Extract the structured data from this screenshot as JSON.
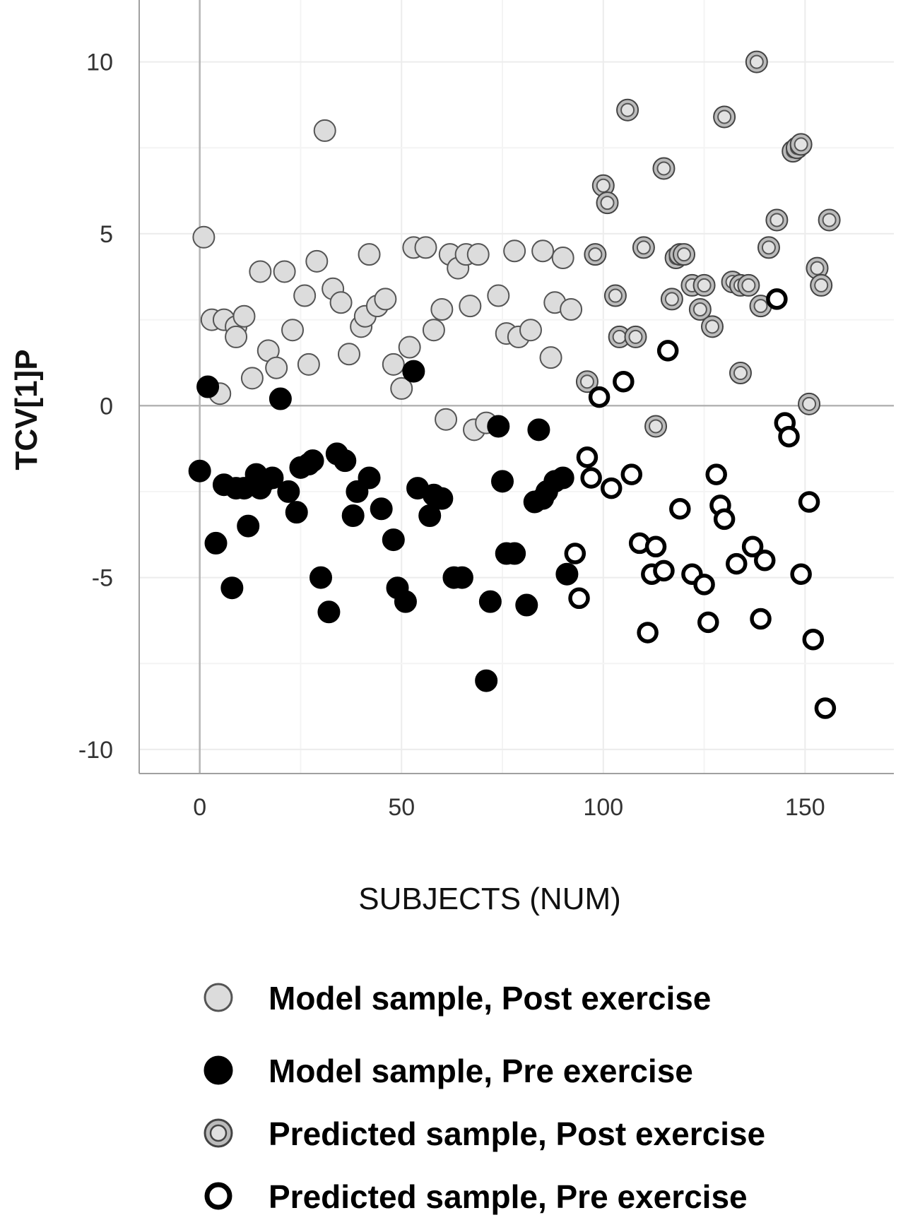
{
  "chart_data": {
    "type": "scatter",
    "title": "",
    "xlabel": "SUBJECTS (NUM)",
    "ylabel": "TCV[1]P",
    "xlim": [
      -15,
      172
    ],
    "ylim": [
      -10.7,
      11.8
    ],
    "xticks": [
      0,
      50,
      100,
      150
    ],
    "yticks": [
      10,
      5,
      0,
      -5,
      -10
    ],
    "xtick_labels": [
      "0",
      "50",
      "100",
      "150"
    ],
    "ytick_labels": [
      "10",
      "5",
      "0",
      "-5",
      "-10"
    ],
    "grid": true,
    "reference_lines": {
      "x": 0,
      "y": 0
    },
    "legend_position": "bottom",
    "series": [
      {
        "name": "Model sample, Post exercise",
        "marker": "filled-circle",
        "color": "#dcdcdc",
        "edge": "#555555",
        "points": [
          [
            1,
            4.9
          ],
          [
            3,
            2.5
          ],
          [
            6,
            2.5
          ],
          [
            5,
            0.35
          ],
          [
            9,
            2.3
          ],
          [
            9,
            2.0
          ],
          [
            11,
            2.6
          ],
          [
            13,
            0.8
          ],
          [
            15,
            3.9
          ],
          [
            17,
            1.6
          ],
          [
            19,
            1.1
          ],
          [
            21,
            3.9
          ],
          [
            23,
            2.2
          ],
          [
            26,
            3.2
          ],
          [
            27,
            1.2
          ],
          [
            29,
            4.2
          ],
          [
            31,
            8.0
          ],
          [
            33,
            3.4
          ],
          [
            35,
            3.0
          ],
          [
            37,
            1.5
          ],
          [
            40,
            2.3
          ],
          [
            41,
            2.6
          ],
          [
            42,
            4.4
          ],
          [
            44,
            2.9
          ],
          [
            46,
            3.1
          ],
          [
            48,
            1.2
          ],
          [
            50,
            0.5
          ],
          [
            52,
            1.7
          ],
          [
            53,
            4.6
          ],
          [
            56,
            4.6
          ],
          [
            58,
            2.2
          ],
          [
            60,
            2.8
          ],
          [
            61,
            -0.4
          ],
          [
            62,
            4.4
          ],
          [
            64,
            4.0
          ],
          [
            66,
            4.4
          ],
          [
            67,
            2.9
          ],
          [
            68,
            -0.7
          ],
          [
            69,
            4.4
          ],
          [
            71,
            -0.5
          ],
          [
            74,
            3.2
          ],
          [
            76,
            2.1
          ],
          [
            78,
            4.5
          ],
          [
            79,
            2.0
          ],
          [
            82,
            2.2
          ],
          [
            85,
            4.5
          ],
          [
            87,
            1.4
          ],
          [
            88,
            3.0
          ],
          [
            90,
            4.3
          ],
          [
            92,
            2.8
          ]
        ]
      },
      {
        "name": "Model sample, Pre exercise",
        "marker": "filled-circle",
        "color": "#000000",
        "edge": "#000000",
        "points": [
          [
            0,
            -1.9
          ],
          [
            2,
            0.55
          ],
          [
            4,
            -4.0
          ],
          [
            6,
            -2.3
          ],
          [
            8,
            -5.3
          ],
          [
            9,
            -2.4
          ],
          [
            11,
            -2.4
          ],
          [
            12,
            -3.5
          ],
          [
            14,
            -2.0
          ],
          [
            15,
            -2.4
          ],
          [
            16,
            -2.2
          ],
          [
            18,
            -2.1
          ],
          [
            20,
            0.2
          ],
          [
            22,
            -2.5
          ],
          [
            24,
            -3.1
          ],
          [
            25,
            -1.8
          ],
          [
            27,
            -1.7
          ],
          [
            28,
            -1.6
          ],
          [
            30,
            -5.0
          ],
          [
            32,
            -6.0
          ],
          [
            34,
            -1.4
          ],
          [
            36,
            -1.6
          ],
          [
            38,
            -3.2
          ],
          [
            39,
            -2.5
          ],
          [
            42,
            -2.1
          ],
          [
            45,
            -3.0
          ],
          [
            48,
            -3.9
          ],
          [
            49,
            -5.3
          ],
          [
            51,
            -5.7
          ],
          [
            53,
            1.0
          ],
          [
            54,
            -2.4
          ],
          [
            57,
            -3.2
          ],
          [
            58,
            -2.6
          ],
          [
            60,
            -2.7
          ],
          [
            63,
            -5.0
          ],
          [
            65,
            -5.0
          ],
          [
            71,
            -8.0
          ],
          [
            72,
            -5.7
          ],
          [
            74,
            -0.6
          ],
          [
            75,
            -2.2
          ],
          [
            76,
            -4.3
          ],
          [
            78,
            -4.3
          ],
          [
            81,
            -5.8
          ],
          [
            83,
            -2.8
          ],
          [
            84,
            -0.7
          ],
          [
            85,
            -2.7
          ],
          [
            86,
            -2.5
          ],
          [
            88,
            -2.2
          ],
          [
            90,
            -2.1
          ],
          [
            91,
            -4.9
          ]
        ]
      },
      {
        "name": "Predicted sample, Post exercise",
        "marker": "ring",
        "color": "#bbbbbb",
        "edge": "#444444",
        "points": [
          [
            96,
            0.7
          ],
          [
            98,
            4.4
          ],
          [
            100,
            6.4
          ],
          [
            101,
            5.9
          ],
          [
            103,
            3.2
          ],
          [
            104,
            2.0
          ],
          [
            106,
            8.6
          ],
          [
            108,
            2.0
          ],
          [
            110,
            4.6
          ],
          [
            113,
            -0.6
          ],
          [
            115,
            6.9
          ],
          [
            117,
            3.1
          ],
          [
            118,
            4.3
          ],
          [
            119,
            4.4
          ],
          [
            120,
            4.4
          ],
          [
            122,
            3.5
          ],
          [
            124,
            2.8
          ],
          [
            125,
            3.5
          ],
          [
            127,
            2.3
          ],
          [
            130,
            8.4
          ],
          [
            132,
            3.6
          ],
          [
            134,
            3.5
          ],
          [
            134,
            0.95
          ],
          [
            136,
            3.5
          ],
          [
            138,
            10.0
          ],
          [
            139,
            2.9
          ],
          [
            141,
            4.6
          ],
          [
            143,
            5.4
          ],
          [
            147,
            7.4
          ],
          [
            148,
            7.5
          ],
          [
            149,
            7.6
          ],
          [
            151,
            0.05
          ],
          [
            153,
            4.0
          ],
          [
            154,
            3.5
          ],
          [
            156,
            5.4
          ]
        ]
      },
      {
        "name": "Predicted sample, Pre exercise",
        "marker": "hollow-circle",
        "color": "#ffffff",
        "edge": "#000000",
        "points": [
          [
            93,
            -4.3
          ],
          [
            94,
            -5.6
          ],
          [
            96,
            -1.5
          ],
          [
            97,
            -2.1
          ],
          [
            99,
            0.25
          ],
          [
            102,
            -2.4
          ],
          [
            105,
            0.7
          ],
          [
            107,
            -2.0
          ],
          [
            109,
            -4.0
          ],
          [
            111,
            -6.6
          ],
          [
            112,
            -4.9
          ],
          [
            113,
            -4.1
          ],
          [
            115,
            -4.8
          ],
          [
            116,
            1.6
          ],
          [
            119,
            -3.0
          ],
          [
            122,
            -4.9
          ],
          [
            125,
            -5.2
          ],
          [
            126,
            -6.3
          ],
          [
            128,
            -2.0
          ],
          [
            129,
            -2.9
          ],
          [
            130,
            -3.3
          ],
          [
            133,
            -4.6
          ],
          [
            137,
            -4.1
          ],
          [
            139,
            -6.2
          ],
          [
            140,
            -4.5
          ],
          [
            143,
            3.1
          ],
          [
            145,
            -0.5
          ],
          [
            146,
            -0.9
          ],
          [
            149,
            -4.9
          ],
          [
            151,
            -2.8
          ],
          [
            152,
            -6.8
          ],
          [
            155,
            -8.8
          ]
        ]
      }
    ]
  }
}
